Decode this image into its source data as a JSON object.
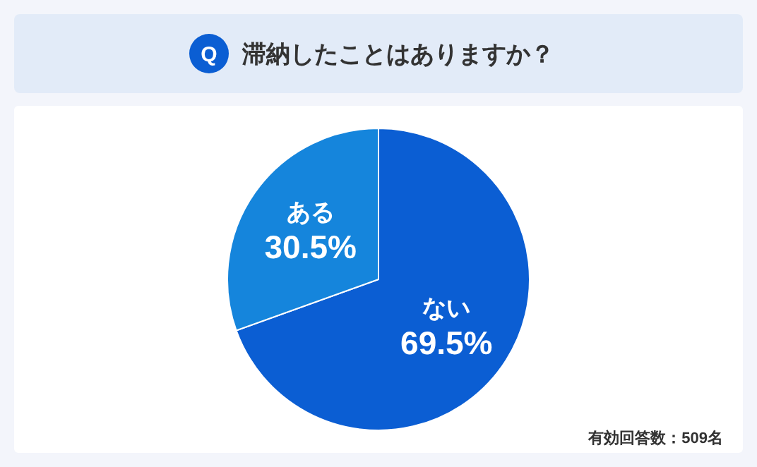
{
  "chart_data": {
    "type": "pie",
    "title": "滞納したことはありますか？",
    "categories": [
      "ない",
      "ある"
    ],
    "values": [
      69.5,
      30.5
    ],
    "value_labels": [
      "69.5%",
      "30.5%"
    ],
    "colors": [
      "#0b5ed3",
      "#1585dc"
    ],
    "annotations": [
      "Q",
      "有効回答数：509名"
    ],
    "legend": false
  }
}
